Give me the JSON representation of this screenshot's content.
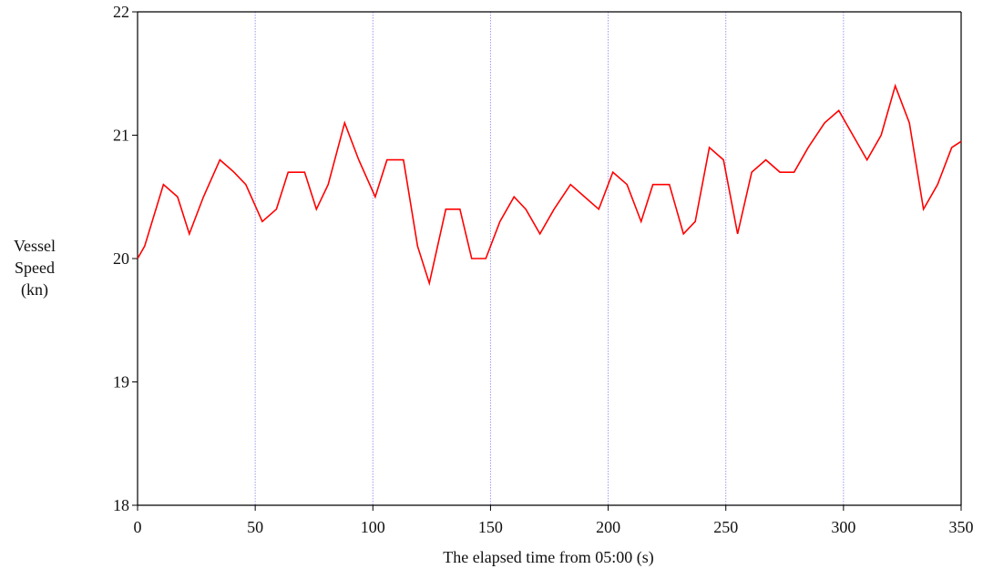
{
  "chart_data": {
    "type": "line",
    "title": "",
    "xlabel": "The elapsed time from 05:00 (s)",
    "ylabel_lines": [
      "Vessel",
      "Speed",
      "(kn)"
    ],
    "xlim": [
      0,
      350
    ],
    "ylim": [
      18,
      22
    ],
    "xticks": [
      0,
      50,
      100,
      150,
      200,
      250,
      300,
      350
    ],
    "yticks": [
      18,
      19,
      20,
      21,
      22
    ],
    "grid": "vertical dotted",
    "line_color": "#ff0000",
    "grid_color": "#9999ee",
    "series": [
      {
        "x": [
          0,
          3,
          11,
          17,
          22,
          28,
          35,
          41,
          46,
          53,
          59,
          64,
          71,
          76,
          81,
          88,
          94,
          101,
          106,
          113,
          119,
          124,
          131,
          137,
          142,
          148,
          154,
          160,
          165,
          171,
          177,
          184,
          190,
          196,
          202,
          208,
          214,
          219,
          226,
          232,
          237,
          243,
          249,
          255,
          261,
          267,
          273,
          279,
          285,
          292,
          298,
          304,
          310,
          316,
          322,
          328,
          334,
          340,
          346,
          350
        ],
        "y": [
          20.0,
          20.1,
          20.6,
          20.5,
          20.2,
          20.5,
          20.8,
          20.7,
          20.6,
          20.3,
          20.4,
          20.7,
          20.7,
          20.4,
          20.6,
          21.1,
          20.8,
          20.5,
          20.8,
          20.8,
          20.1,
          19.8,
          20.4,
          20.4,
          20.0,
          20.0,
          20.3,
          20.5,
          20.4,
          20.2,
          20.4,
          20.6,
          20.5,
          20.4,
          20.7,
          20.6,
          20.3,
          20.6,
          20.6,
          20.2,
          20.3,
          20.9,
          20.8,
          20.2,
          20.7,
          20.8,
          20.7,
          20.7,
          20.9,
          21.1,
          21.2,
          21.0,
          20.8,
          21.0,
          21.4,
          21.1,
          20.4,
          20.6,
          20.9,
          20.95
        ]
      }
    ]
  }
}
